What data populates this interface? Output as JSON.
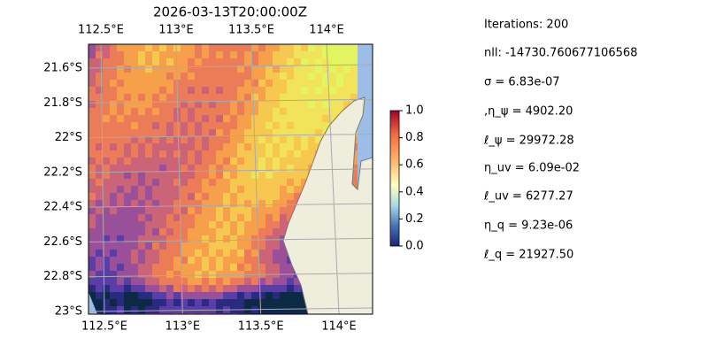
{
  "title": "2026-03-13T20:00:00Z",
  "lon_ticks": [
    {
      "value": 112.5,
      "label": "112.5°E"
    },
    {
      "value": 113,
      "label": "113°E"
    },
    {
      "value": 113.5,
      "label": "113.5°E"
    },
    {
      "value": 114,
      "label": "114°E"
    }
  ],
  "lat_ticks": [
    {
      "value": -21.6,
      "label": "21.6°S"
    },
    {
      "value": -21.8,
      "label": "21.8°S"
    },
    {
      "value": -22,
      "label": "22°S"
    },
    {
      "value": -22.2,
      "label": "22.2°S"
    },
    {
      "value": -22.4,
      "label": "22.4°S"
    },
    {
      "value": -22.6,
      "label": "22.6°S"
    },
    {
      "value": -22.8,
      "label": "22.8°S"
    },
    {
      "value": -23,
      "label": "23°S"
    }
  ],
  "colorbar": {
    "lim": [
      0,
      1
    ],
    "ticks": [
      {
        "value": 0,
        "label": "0.0"
      },
      0.2,
      0.4,
      0.6,
      0.8,
      {
        "value": 1,
        "label": "1.0"
      }
    ]
  },
  "stats": [
    "Iterations: 200",
    "nll: -14730.760677106568",
    "σ = 6.83e-07",
    ",η_ψ = 4902.20",
    "ℓ_ψ = 29972.28",
    "η_uv = 6.09e-02",
    "ℓ_uv = 6277.27",
    "η_q = 9.23e-06",
    "ℓ_q = 21927.50"
  ]
}
